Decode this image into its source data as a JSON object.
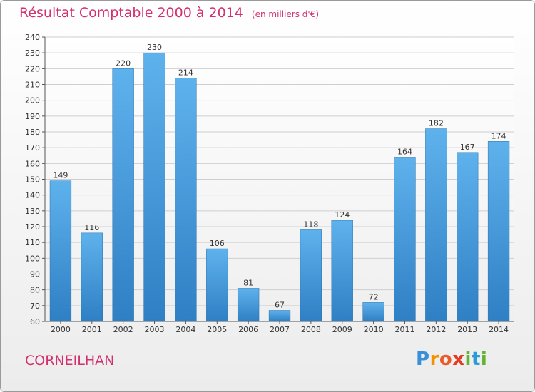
{
  "header": {
    "title": "Résultat Comptable 2000 à 2014",
    "subtitle": "(en milliers d'€)"
  },
  "footer": {
    "commune": "CORNEILHAN",
    "logo_text": "Proxiti",
    "logo_colors": [
      "#3a8fd9",
      "#f39200",
      "#ea5b2a",
      "#e23a24",
      "#62b32e",
      "#2b9bd8",
      "#62b32e"
    ]
  },
  "chart_data": {
    "type": "bar",
    "title": "Résultat Comptable 2000 à 2014",
    "subtitle": "(en milliers d'€)",
    "categories": [
      "2000",
      "2001",
      "2002",
      "2003",
      "2004",
      "2005",
      "2006",
      "2007",
      "2008",
      "2009",
      "2010",
      "2011",
      "2012",
      "2013",
      "2014"
    ],
    "values": [
      149,
      116,
      220,
      230,
      214,
      106,
      81,
      67,
      118,
      124,
      72,
      164,
      182,
      167,
      174
    ],
    "ylim": [
      60,
      240
    ],
    "yticks": [
      60,
      70,
      80,
      90,
      100,
      110,
      120,
      130,
      140,
      150,
      160,
      170,
      180,
      190,
      200,
      210,
      220,
      230,
      240
    ],
    "grid": true,
    "bar_color": "#4a9fe0",
    "axis_color": "#555555",
    "xlabel": "",
    "ylabel": ""
  }
}
